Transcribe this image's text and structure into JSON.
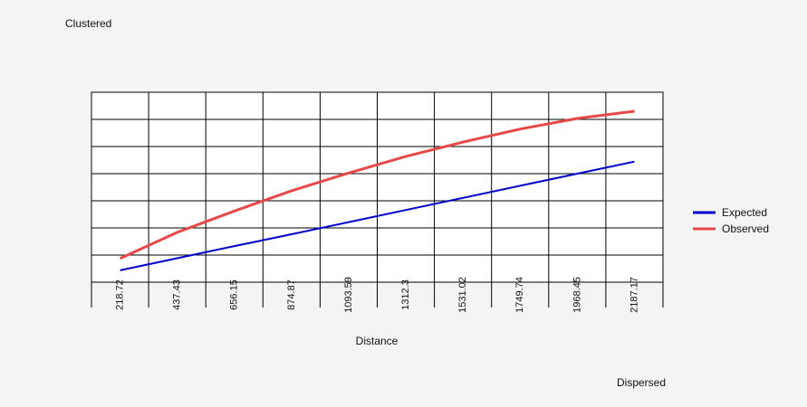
{
  "chart_data": {
    "type": "line",
    "top_label": "Clustered",
    "bottom_label": "Dispersed",
    "xlabel": "Distance",
    "ylabel": "",
    "x": [
      218.72,
      437.43,
      656.15,
      874.87,
      1093.59,
      1312.3,
      1531.02,
      1749.74,
      1968.45,
      2187.17
    ],
    "x_tick_labels": [
      "218.72",
      "437.43",
      "656.15",
      "874.87",
      "1093.59",
      "1312.3",
      "1531.02",
      "1749.74",
      "1968.45",
      "2187.17"
    ],
    "ylim": [
      0,
      8
    ],
    "grid": true,
    "legend_position": "right",
    "series": [
      {
        "name": "Expected",
        "color": "#0000cc",
        "values": [
          0.5,
          1.01,
          1.52,
          2.02,
          2.53,
          3.04,
          3.55,
          4.06,
          4.57,
          5.08
        ]
      },
      {
        "name": "Observed",
        "color": "#e84848",
        "values": [
          1.0,
          2.1,
          3.0,
          3.85,
          4.6,
          5.3,
          5.9,
          6.45,
          6.9,
          7.2
        ]
      }
    ]
  }
}
